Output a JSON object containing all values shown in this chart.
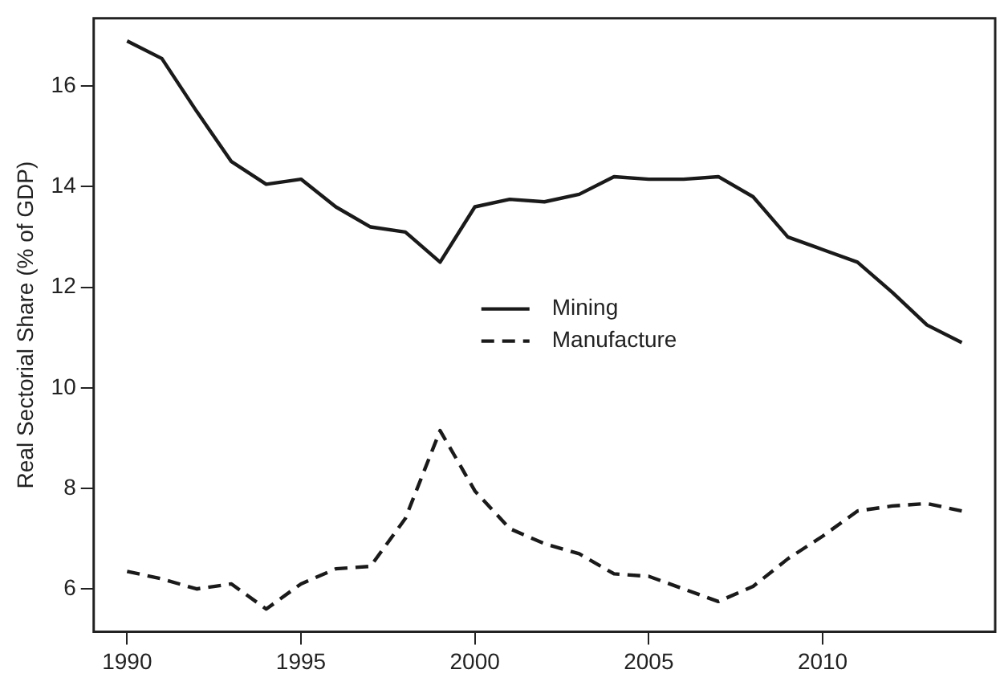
{
  "chart_data": {
    "type": "line",
    "ylabel": "Real Sectorial Share (% of GDP)",
    "x": [
      1990,
      1991,
      1992,
      1993,
      1994,
      1995,
      1996,
      1997,
      1998,
      1999,
      2000,
      2001,
      2002,
      2003,
      2004,
      2005,
      2006,
      2007,
      2008,
      2009,
      2010,
      2011,
      2012,
      2013,
      2014
    ],
    "series": [
      {
        "name": "Mining",
        "color": "#1a1a1a",
        "line_style": "solid",
        "values": [
          16.9,
          16.55,
          15.5,
          14.5,
          14.05,
          14.15,
          13.6,
          13.2,
          13.1,
          12.5,
          13.6,
          13.75,
          13.7,
          13.85,
          14.2,
          14.15,
          14.15,
          14.2,
          13.8,
          13.0,
          12.75,
          12.5,
          11.9,
          11.25,
          10.9
        ]
      },
      {
        "name": "Manufacture",
        "color": "#1a1a1a",
        "line_style": "dashed",
        "values": [
          6.35,
          6.2,
          6.0,
          6.1,
          5.6,
          6.1,
          6.4,
          6.45,
          7.4,
          9.15,
          7.95,
          7.2,
          6.9,
          6.7,
          6.3,
          6.25,
          6.0,
          5.75,
          6.05,
          6.6,
          7.05,
          7.55,
          7.65,
          7.7,
          7.55
        ]
      }
    ],
    "xlim": [
      1989.04,
      2014.96
    ],
    "xticks": [
      1990,
      1995,
      2000,
      2005,
      2010
    ],
    "ylim": [
      5.15,
      17.35
    ],
    "yticks": [
      6,
      8,
      10,
      12,
      14,
      16
    ],
    "grid": false,
    "legend": "center",
    "marker": "none"
  }
}
